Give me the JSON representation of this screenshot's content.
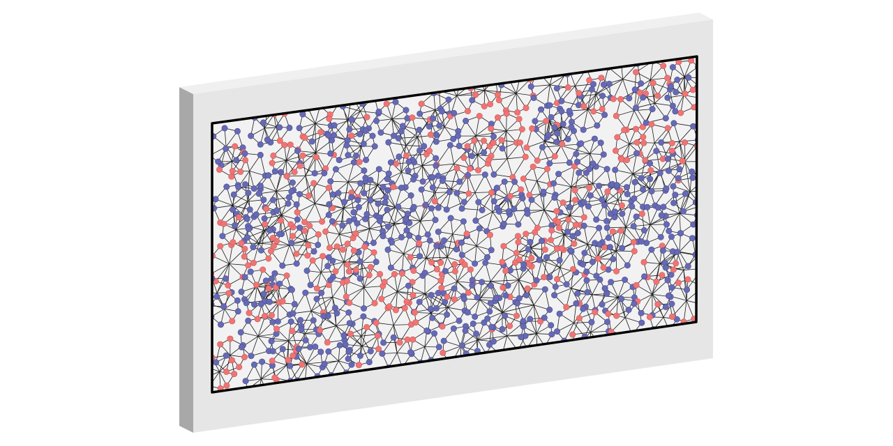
{
  "colors": {
    "background": "#ffffff",
    "panel_face": "#e6e6e6",
    "panel_side": "#a8a8a8",
    "panel_side_dark": "#8e8e8e",
    "panel_top": "#f0f0f0",
    "frame_border": "#000000",
    "frame_fill": "#f2f2f2",
    "edge_color": "#1a1a1a",
    "node_blue": "#6669b4",
    "node_red": "#f07474",
    "node_outline_blue": "#4a4d90",
    "node_outline_red": "#c85858"
  },
  "network": {
    "description_shown": false,
    "node_types": [
      "blue",
      "red"
    ],
    "red_fraction": 0.3,
    "spoke_hubs": true
  }
}
